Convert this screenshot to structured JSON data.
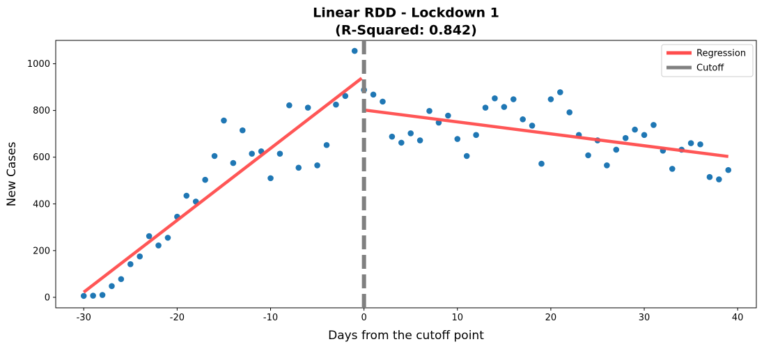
{
  "chart_data": {
    "type": "scatter",
    "title": "Linear RDD - Lockdown 1",
    "subtitle": "(R-Squared: 0.842)",
    "xlabel": "Days from the cutoff point",
    "ylabel": "New Cases",
    "xlim": [
      -33,
      42
    ],
    "ylim": [
      -45,
      1100
    ],
    "xticks": [
      -30,
      -20,
      -10,
      0,
      10,
      20,
      30,
      40
    ],
    "yticks": [
      0,
      200,
      400,
      600,
      800,
      1000
    ],
    "grid": false,
    "legend_position": "top-right",
    "points": {
      "color": "#1f77b4",
      "x": [
        -30,
        -29,
        -28,
        -27,
        -26,
        -25,
        -24,
        -23,
        -22,
        -21,
        -20,
        -19,
        -18,
        -17,
        -16,
        -15,
        -14,
        -13,
        -12,
        -11,
        -10,
        -9,
        -8,
        -7,
        -6,
        -5,
        -4,
        -3,
        -2,
        -1,
        0,
        1,
        2,
        3,
        4,
        5,
        6,
        7,
        8,
        9,
        10,
        11,
        12,
        13,
        14,
        15,
        16,
        17,
        18,
        19,
        20,
        21,
        22,
        23,
        24,
        25,
        26,
        27,
        28,
        29,
        30,
        31,
        32,
        33,
        34,
        35,
        36,
        37,
        38,
        39
      ],
      "y": [
        6,
        7,
        10,
        48,
        78,
        142,
        175,
        262,
        222,
        255,
        345,
        435,
        410,
        503,
        605,
        757,
        575,
        715,
        615,
        625,
        510,
        615,
        822,
        555,
        812,
        565,
        652,
        825,
        862,
        1055,
        888,
        868,
        838,
        688,
        662,
        702,
        672,
        798,
        748,
        778,
        678,
        605,
        695,
        812,
        852,
        815,
        848,
        762,
        735,
        572,
        848,
        878,
        792,
        695,
        608,
        672,
        565,
        632,
        682,
        718,
        695,
        738,
        628,
        550,
        632,
        660,
        655,
        515,
        505,
        545
      ]
    },
    "series": [
      {
        "name": "Regression",
        "color": "#ff4d4d",
        "segments": [
          {
            "x": [
              -30,
              -0.25
            ],
            "y": [
              22,
              938
            ]
          },
          {
            "x": [
              0,
              39
            ],
            "y": [
              802,
              603
            ]
          }
        ]
      },
      {
        "name": "Cutoff",
        "color": "#808080",
        "x": 0,
        "style": "dashed-vertical"
      }
    ],
    "legend": [
      {
        "label": "Regression",
        "color": "#ff4d4d"
      },
      {
        "label": "Cutoff",
        "color": "#808080"
      }
    ]
  }
}
